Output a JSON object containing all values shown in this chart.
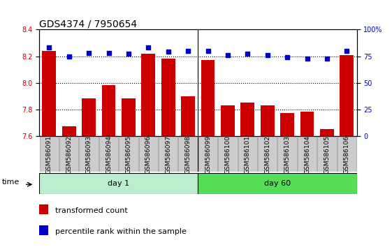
{
  "title": "GDS4374 / 7950654",
  "samples": [
    "GSM586091",
    "GSM586092",
    "GSM586093",
    "GSM586094",
    "GSM586095",
    "GSM586096",
    "GSM586097",
    "GSM586098",
    "GSM586099",
    "GSM586100",
    "GSM586101",
    "GSM586102",
    "GSM586103",
    "GSM586104",
    "GSM586105",
    "GSM586106"
  ],
  "transformed_count": [
    8.24,
    7.67,
    7.88,
    7.98,
    7.88,
    8.22,
    8.18,
    7.9,
    8.17,
    7.83,
    7.85,
    7.83,
    7.77,
    7.78,
    7.65,
    8.21
  ],
  "percentile_rank": [
    83,
    75,
    78,
    78,
    77,
    83,
    79,
    80,
    80,
    76,
    77,
    76,
    74,
    73,
    73,
    80
  ],
  "day1_count": 8,
  "day60_count": 8,
  "ylim_left": [
    7.6,
    8.4
  ],
  "ylim_right": [
    0,
    100
  ],
  "yticks_left": [
    7.6,
    7.8,
    8.0,
    8.2,
    8.4
  ],
  "yticks_right": [
    0,
    25,
    50,
    75,
    100
  ],
  "bar_color": "#cc0000",
  "dot_color": "#0000cc",
  "day1_color": "#bbeecc",
  "day60_color": "#55dd55",
  "bg_color": "#cccccc",
  "title_fontsize": 10,
  "tick_fontsize": 7,
  "label_fontsize": 8,
  "bar_width": 0.7
}
